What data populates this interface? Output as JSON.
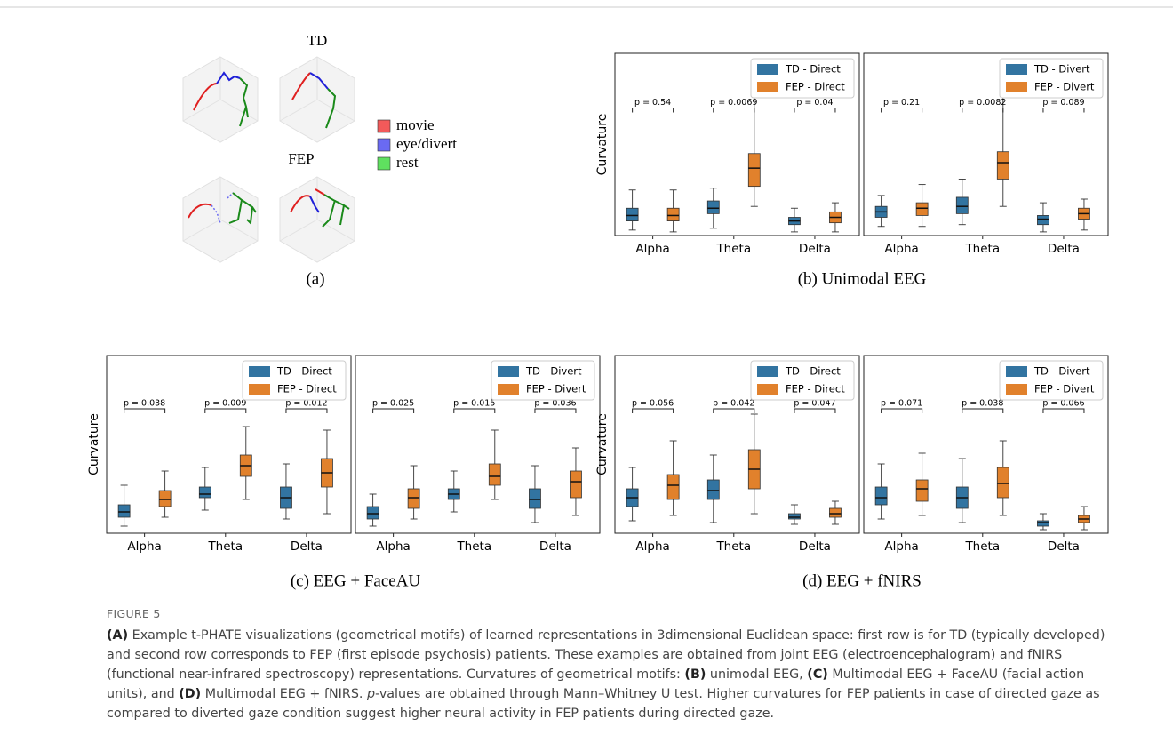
{
  "panel_a": {
    "row_labels": [
      "TD",
      "FEP"
    ],
    "legend": [
      {
        "name": "movie",
        "color": "#f25a5a"
      },
      {
        "name": "eye/divert",
        "color": "#6a6af2"
      },
      {
        "name": "rest",
        "color": "#5fe05f"
      }
    ]
  },
  "subcaptions": [
    "(a)",
    "(b) Unimodal EEG",
    "(c) EEG + FaceAU",
    "(d) EEG + fNIRS"
  ],
  "chart_data": [
    {
      "type": "box",
      "ylabel": "Curvature",
      "categories": [
        "Alpha",
        "Theta",
        "Delta"
      ],
      "ylim": [
        0,
        1
      ],
      "legend": "upper right",
      "series": [
        {
          "name": "TD - Direct",
          "color": "#3274a1",
          "values": [
            [
              0.03,
              0.08,
              0.11,
              0.15,
              0.25
            ],
            [
              0.04,
              0.12,
              0.15,
              0.19,
              0.26
            ],
            [
              0.02,
              0.06,
              0.08,
              0.1,
              0.15
            ]
          ]
        },
        {
          "name": "FEP - Direct",
          "color": "#e1812c",
          "values": [
            [
              0.02,
              0.08,
              0.11,
              0.15,
              0.25
            ],
            [
              0.16,
              0.27,
              0.37,
              0.45,
              0.79
            ],
            [
              0.02,
              0.07,
              0.1,
              0.13,
              0.18
            ]
          ]
        }
      ],
      "pvalues": [
        "p = 0.54",
        "p = 0.0069",
        "p = 0.04"
      ]
    },
    {
      "type": "box",
      "categories": [
        "Alpha",
        "Theta",
        "Delta"
      ],
      "ylim": [
        0,
        1
      ],
      "legend": "upper right",
      "series": [
        {
          "name": "TD - Divert",
          "color": "#3274a1",
          "values": [
            [
              0.05,
              0.1,
              0.13,
              0.16,
              0.22
            ],
            [
              0.06,
              0.12,
              0.16,
              0.21,
              0.31
            ],
            [
              0.02,
              0.06,
              0.09,
              0.11,
              0.18
            ]
          ]
        },
        {
          "name": "FEP - Divert",
          "color": "#e1812c",
          "values": [
            [
              0.05,
              0.11,
              0.15,
              0.18,
              0.28
            ],
            [
              0.16,
              0.31,
              0.4,
              0.46,
              0.79
            ],
            [
              0.03,
              0.09,
              0.12,
              0.15,
              0.2
            ]
          ]
        }
      ],
      "pvalues": [
        "p = 0.21",
        "p = 0.0082",
        "p = 0.089"
      ]
    },
    {
      "type": "box",
      "ylabel": "Curvature",
      "categories": [
        "Alpha",
        "Theta",
        "Delta"
      ],
      "ylim": [
        0,
        1
      ],
      "legend": "upper right",
      "series": [
        {
          "name": "TD - Direct",
          "color": "#3274a1",
          "values": [
            [
              0.04,
              0.09,
              0.12,
              0.16,
              0.27
            ],
            [
              0.13,
              0.2,
              0.22,
              0.26,
              0.37
            ],
            [
              0.08,
              0.14,
              0.2,
              0.26,
              0.39
            ]
          ]
        },
        {
          "name": "FEP - Direct",
          "color": "#e1812c",
          "values": [
            [
              0.09,
              0.15,
              0.19,
              0.24,
              0.35
            ],
            [
              0.19,
              0.32,
              0.38,
              0.44,
              0.6
            ],
            [
              0.11,
              0.26,
              0.34,
              0.42,
              0.58
            ]
          ]
        }
      ],
      "pvalues": [
        "p = 0.038",
        "p = 0.009",
        "p = 0.012"
      ]
    },
    {
      "type": "box",
      "categories": [
        "Alpha",
        "Theta",
        "Delta"
      ],
      "ylim": [
        0,
        1
      ],
      "legend": "upper right",
      "series": [
        {
          "name": "TD - Divert",
          "color": "#3274a1",
          "values": [
            [
              0.04,
              0.08,
              0.11,
              0.15,
              0.22
            ],
            [
              0.12,
              0.19,
              0.22,
              0.25,
              0.35
            ],
            [
              0.06,
              0.14,
              0.19,
              0.25,
              0.38
            ]
          ]
        },
        {
          "name": "FEP - Divert",
          "color": "#e1812c",
          "values": [
            [
              0.08,
              0.14,
              0.2,
              0.25,
              0.38
            ],
            [
              0.19,
              0.27,
              0.32,
              0.39,
              0.58
            ],
            [
              0.1,
              0.2,
              0.29,
              0.35,
              0.48
            ]
          ]
        }
      ],
      "pvalues": [
        "p = 0.025",
        "p = 0.015",
        "p = 0.036"
      ]
    },
    {
      "type": "box",
      "ylabel": "Curvature",
      "categories": [
        "Alpha",
        "Theta",
        "Delta"
      ],
      "ylim": [
        0,
        1
      ],
      "legend": "upper right",
      "series": [
        {
          "name": "TD - Direct",
          "color": "#3274a1",
          "values": [
            [
              0.07,
              0.15,
              0.2,
              0.25,
              0.37
            ],
            [
              0.06,
              0.19,
              0.24,
              0.3,
              0.44
            ],
            [
              0.05,
              0.08,
              0.09,
              0.11,
              0.16
            ]
          ]
        },
        {
          "name": "FEP - Direct",
          "color": "#e1812c",
          "values": [
            [
              0.1,
              0.19,
              0.27,
              0.33,
              0.52
            ],
            [
              0.11,
              0.25,
              0.36,
              0.47,
              0.67
            ],
            [
              0.05,
              0.09,
              0.11,
              0.14,
              0.18
            ]
          ]
        }
      ],
      "pvalues": [
        "p = 0.056",
        "p = 0.042",
        "p = 0.047"
      ]
    },
    {
      "type": "box",
      "categories": [
        "Alpha",
        "Theta",
        "Delta"
      ],
      "ylim": [
        0,
        1
      ],
      "legend": "upper right",
      "series": [
        {
          "name": "TD - Divert",
          "color": "#3274a1",
          "values": [
            [
              0.08,
              0.16,
              0.2,
              0.26,
              0.39
            ],
            [
              0.06,
              0.14,
              0.2,
              0.26,
              0.42
            ],
            [
              0.02,
              0.04,
              0.06,
              0.07,
              0.11
            ]
          ]
        },
        {
          "name": "FEP - Divert",
          "color": "#e1812c",
          "values": [
            [
              0.1,
              0.18,
              0.25,
              0.3,
              0.45
            ],
            [
              0.1,
              0.2,
              0.28,
              0.37,
              0.52
            ],
            [
              0.02,
              0.06,
              0.08,
              0.1,
              0.15
            ]
          ]
        }
      ],
      "pvalues": [
        "p = 0.071",
        "p = 0.038",
        "p = 0.066"
      ]
    }
  ],
  "caption": {
    "label": "FIGURE 5",
    "parts": [
      "(A)",
      " Example t-PHATE visualizations (geometrical motifs) of learned representations in 3dimensional Euclidean space: first row is for TD (typically developed) and second row corresponds to FEP (first episode psychosis) patients. These examples are obtained from joint EEG (electroencephalogram) and fNIRS (functional near-infrared spectroscopy) representations. Curvatures of geometrical motifs: ",
      "(B)",
      " unimodal EEG, ",
      "(C)",
      " Multimodal EEG + FaceAU (facial action units), and ",
      "(D)",
      " Multimodal EEG + fNIRS. ",
      "p",
      "-values are obtained through Mann–Whitney U test. Higher curvatures for FEP patients in case of directed gaze as compared to diverted gaze condition suggest higher neural activity in FEP patients during directed gaze."
    ]
  }
}
